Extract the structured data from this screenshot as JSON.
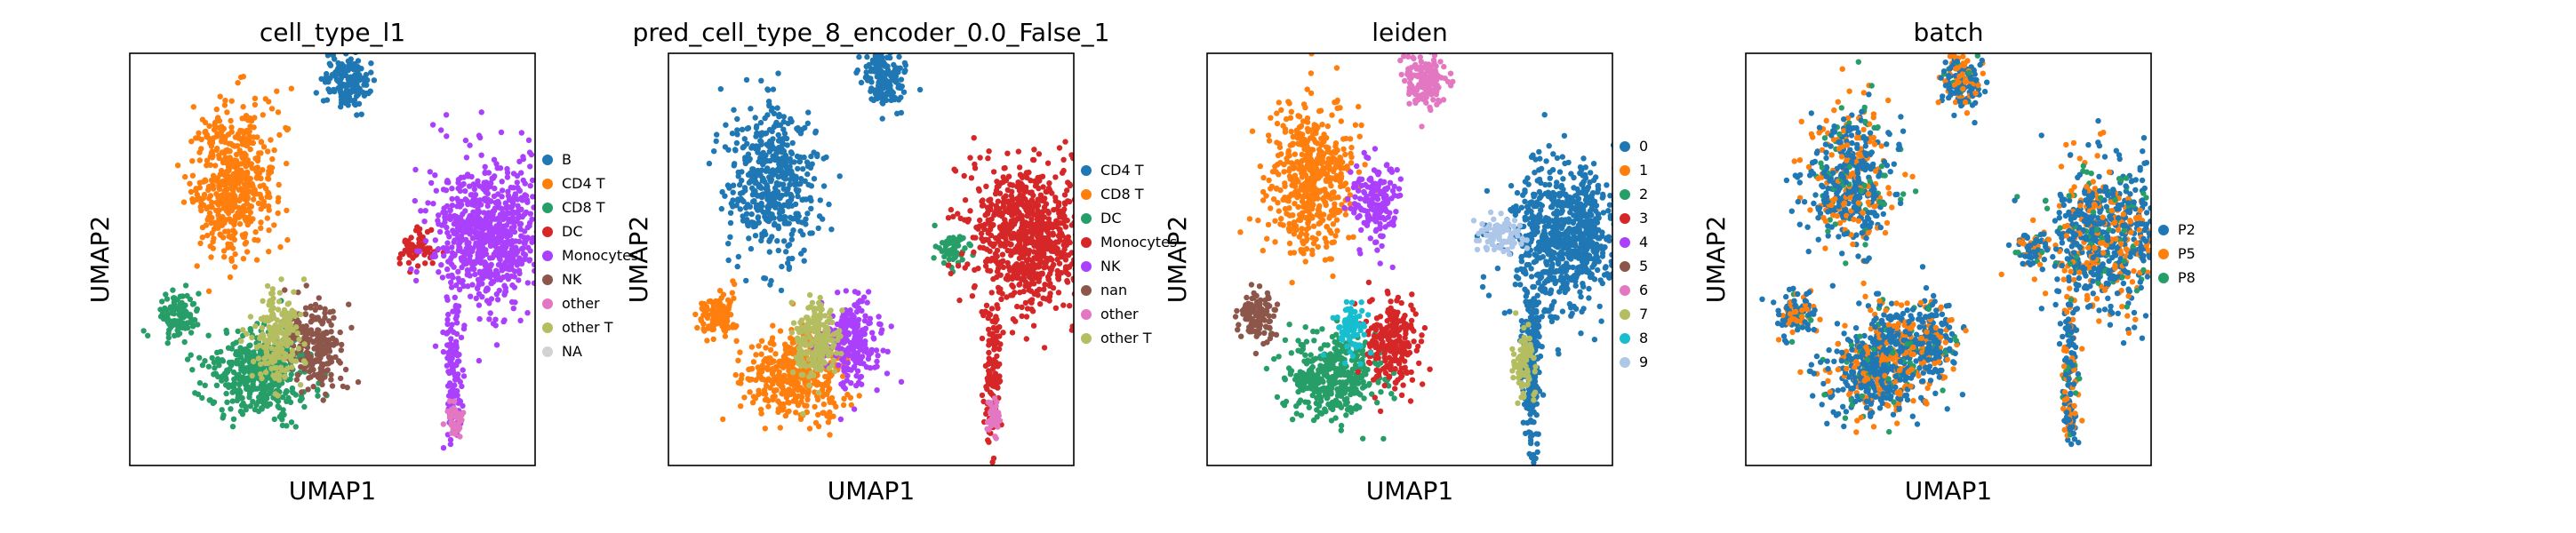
{
  "chart_data": [
    {
      "type": "scatter",
      "title": "cell_type_l1",
      "xlabel": "UMAP1",
      "ylabel": "UMAP2",
      "grid": false,
      "legend_position": "right",
      "categories": [
        "B",
        "CD4 T",
        "CD8 T",
        "DC",
        "Monocytes",
        "NK",
        "other",
        "other T",
        "NA"
      ],
      "colors": [
        "#1f77b4",
        "#ff7f0e",
        "#279e68",
        "#d62728",
        "#aa40fc",
        "#8c564b",
        "#e377c2",
        "#b5bd61",
        "#d3d3d3"
      ],
      "clusters": [
        {
          "name": "B",
          "category": 0,
          "x": 5.1,
          "y": 9.5
        },
        {
          "name": "CD4 T",
          "category": 1,
          "x": 2.2,
          "y": 7.0
        },
        {
          "name": "CD8 T",
          "category": 2,
          "x": 2.8,
          "y": 2.0
        },
        {
          "name": "CD8 T",
          "category": 2,
          "x": 0.8,
          "y": 3.5
        },
        {
          "name": "DC",
          "category": 3,
          "x": 6.9,
          "y": 5.2
        },
        {
          "name": "Monocytes",
          "category": 4,
          "x": 8.8,
          "y": 5.5
        },
        {
          "name": "NK",
          "category": 5,
          "x": 4.3,
          "y": 2.8
        },
        {
          "name": "other",
          "category": 6,
          "x": 7.9,
          "y": 0.9
        },
        {
          "name": "other T",
          "category": 7,
          "x": 3.3,
          "y": 2.9
        }
      ]
    },
    {
      "type": "scatter",
      "title": "pred_cell_type_8_encoder_0.0_False_1",
      "xlabel": "UMAP1",
      "ylabel": "UMAP2",
      "grid": false,
      "legend_position": "right",
      "categories": [
        "CD4 T",
        "CD8 T",
        "DC",
        "Monocytes",
        "NK",
        "nan",
        "other",
        "other T"
      ],
      "colors": [
        "#1f77b4",
        "#ff7f0e",
        "#279e68",
        "#d62728",
        "#aa40fc",
        "#8c564b",
        "#e377c2",
        "#b5bd61"
      ],
      "clusters": [
        {
          "name": "CD4 T",
          "category": 0,
          "x": 2.2,
          "y": 7.0
        },
        {
          "name": "CD4 T",
          "category": 0,
          "x": 5.1,
          "y": 9.5
        },
        {
          "name": "CD8 T",
          "category": 1,
          "x": 2.8,
          "y": 2.0
        },
        {
          "name": "CD8 T",
          "category": 1,
          "x": 0.8,
          "y": 3.5
        },
        {
          "name": "DC",
          "category": 2,
          "x": 6.9,
          "y": 5.2
        },
        {
          "name": "Monocytes",
          "category": 3,
          "x": 8.8,
          "y": 5.5
        },
        {
          "name": "NK",
          "category": 4,
          "x": 4.3,
          "y": 2.8
        },
        {
          "name": "other",
          "category": 6,
          "x": 7.9,
          "y": 0.9
        },
        {
          "name": "other T",
          "category": 7,
          "x": 3.3,
          "y": 2.9
        }
      ]
    },
    {
      "type": "scatter",
      "title": "leiden",
      "xlabel": "UMAP1",
      "ylabel": "UMAP2",
      "grid": false,
      "legend_position": "right",
      "categories": [
        "0",
        "1",
        "2",
        "3",
        "4",
        "5",
        "6",
        "7",
        "8",
        "9"
      ],
      "colors": [
        "#1f77b4",
        "#ff7f0e",
        "#279e68",
        "#d62728",
        "#aa40fc",
        "#8c564b",
        "#e377c2",
        "#b5bd61",
        "#17becf",
        "#aec7e8"
      ],
      "clusters": [
        {
          "name": "0",
          "category": 0,
          "x": 8.8,
          "y": 5.5
        },
        {
          "name": "1",
          "category": 1,
          "x": 2.2,
          "y": 7.0
        },
        {
          "name": "2",
          "category": 2,
          "x": 2.8,
          "y": 2.0
        },
        {
          "name": "3",
          "category": 3,
          "x": 4.3,
          "y": 2.8
        },
        {
          "name": "4",
          "category": 4,
          "x": 3.9,
          "y": 6.3
        },
        {
          "name": "5",
          "category": 5,
          "x": 0.8,
          "y": 3.5
        },
        {
          "name": "6",
          "category": 6,
          "x": 5.1,
          "y": 9.5
        },
        {
          "name": "7",
          "category": 7,
          "x": 7.7,
          "y": 2.4
        },
        {
          "name": "8",
          "category": 8,
          "x": 3.2,
          "y": 3.2
        },
        {
          "name": "9",
          "category": 9,
          "x": 7.1,
          "y": 5.6
        }
      ]
    },
    {
      "type": "scatter",
      "title": "batch",
      "xlabel": "UMAP1",
      "ylabel": "UMAP2",
      "grid": false,
      "legend_position": "right",
      "categories": [
        "P2",
        "P5",
        "P8"
      ],
      "colors": [
        "#1f77b4",
        "#ff7f0e",
        "#279e68"
      ],
      "clusters": [
        {
          "name": "P2",
          "category": 0,
          "x": 2.2,
          "y": 7.0
        },
        {
          "name": "P5",
          "category": 1,
          "x": 8.8,
          "y": 5.5
        },
        {
          "name": "P8",
          "category": 2,
          "x": 3.0,
          "y": 2.6
        }
      ]
    }
  ]
}
